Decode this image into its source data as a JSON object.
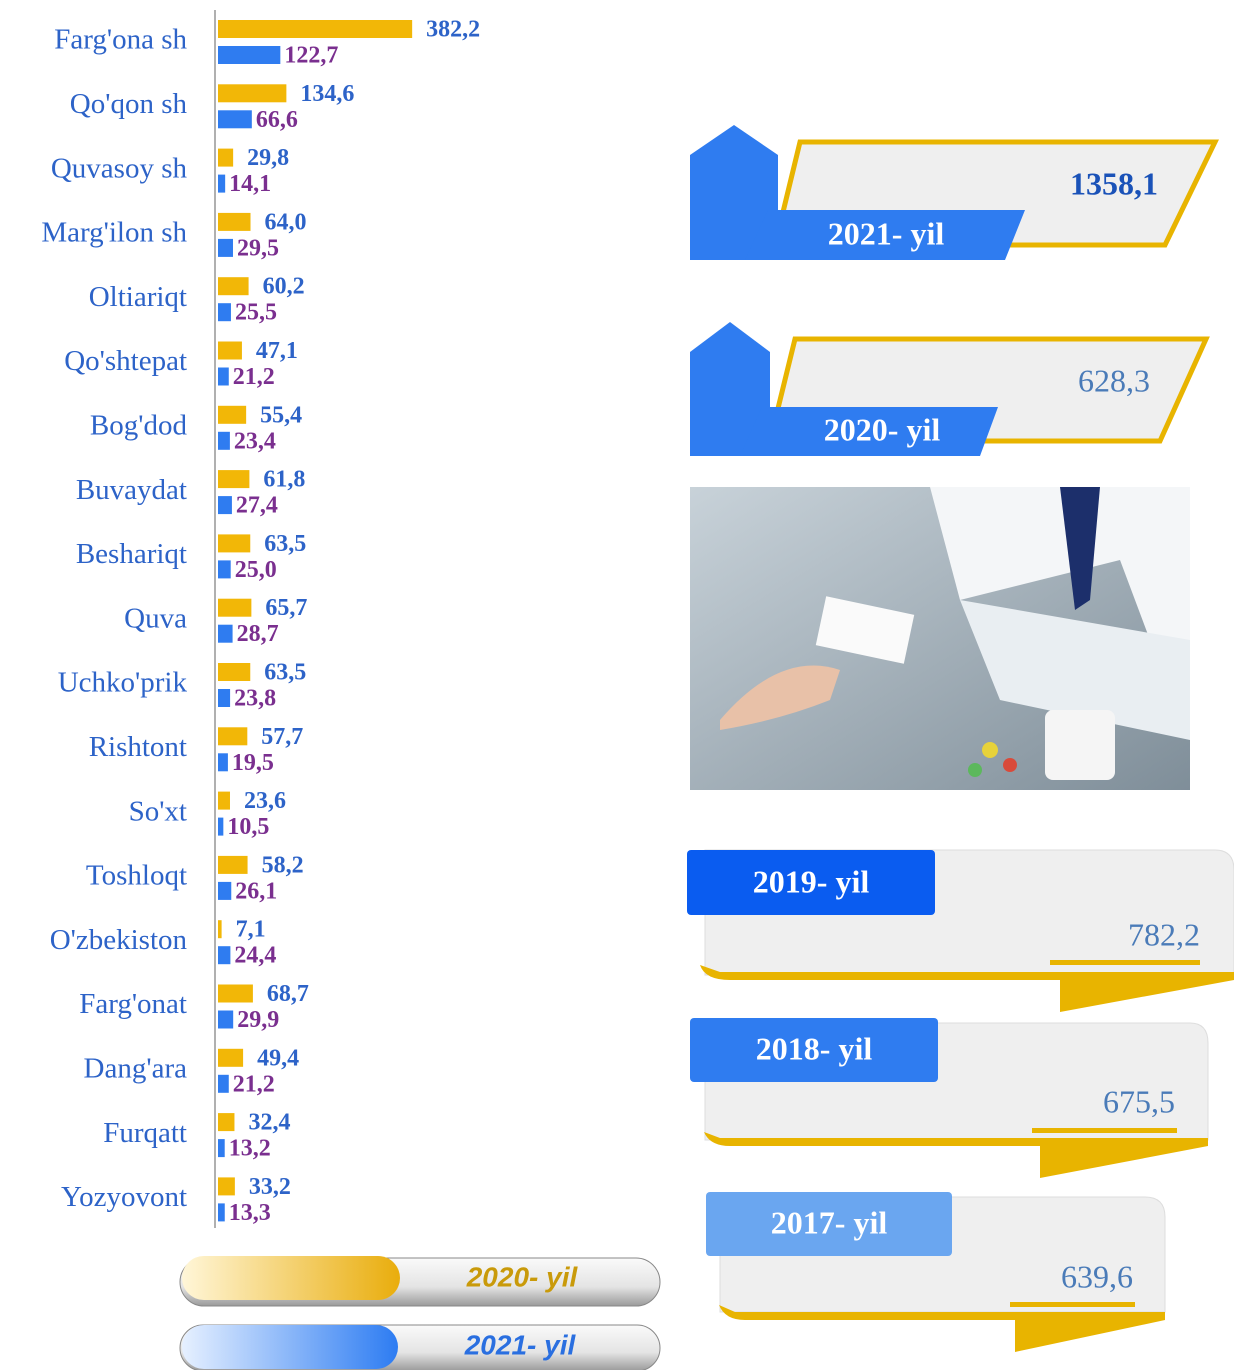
{
  "chart_data": {
    "type": "bar",
    "orientation": "horizontal",
    "categories": [
      "Farg'ona sh",
      "Qo'qon sh",
      "Quvasoy sh",
      "Marg'ilon sh",
      "Oltiariqt",
      "Qo'shtepat",
      "Bog'dod",
      "Buvaydat",
      "Beshariqt",
      "Quva",
      "Uchko'prik",
      "Rishtont",
      "So'xt",
      "Toshloqt",
      "O'zbekiston",
      "Farg'onat",
      "Dang'ara",
      "Furqatt",
      "Yozyovont"
    ],
    "series": [
      {
        "name": "2020- yil",
        "color": "#f2b707",
        "values": [
          382.2,
          134.6,
          29.8,
          64.0,
          60.2,
          47.1,
          55.4,
          61.8,
          63.5,
          65.7,
          63.5,
          57.7,
          23.6,
          58.2,
          7.1,
          68.7,
          49.4,
          32.4,
          33.2
        ],
        "value_labels": [
          "382,2",
          "134,6",
          "29,8",
          "64,0",
          "60,2",
          "47,1",
          "55,4",
          "61,8",
          "63,5",
          "65,7",
          "63,5",
          "57,7",
          "23,6",
          "58,2",
          "7,1",
          "68,7",
          "49,4",
          "32,4",
          "33,2"
        ]
      },
      {
        "name": "2021- yil",
        "color": "#2f7cf0",
        "values": [
          122.7,
          66.6,
          14.1,
          29.5,
          25.5,
          21.2,
          23.4,
          27.4,
          25.0,
          28.7,
          23.8,
          19.5,
          10.5,
          26.1,
          24.4,
          29.9,
          21.2,
          13.2,
          13.3
        ],
        "value_labels": [
          "122,7",
          "66,6",
          "14,1",
          "29,5",
          "25,5",
          "21,2",
          "23,4",
          "27,4",
          "25,0",
          "28,7",
          "23,8",
          "19,5",
          "10,5",
          "26,1",
          "24,4",
          "29,9",
          "21,2",
          "13,2",
          "13,3"
        ]
      }
    ]
  },
  "yearly_totals": [
    {
      "label": "2021- yil",
      "value": "1358,1"
    },
    {
      "label": "2020- yil",
      "value": "628,3"
    },
    {
      "label": "2019- yil",
      "value": "782,2"
    },
    {
      "label": "2018- yil",
      "value": "675,5"
    },
    {
      "label": "2017- yil",
      "value": "639,6"
    }
  ]
}
